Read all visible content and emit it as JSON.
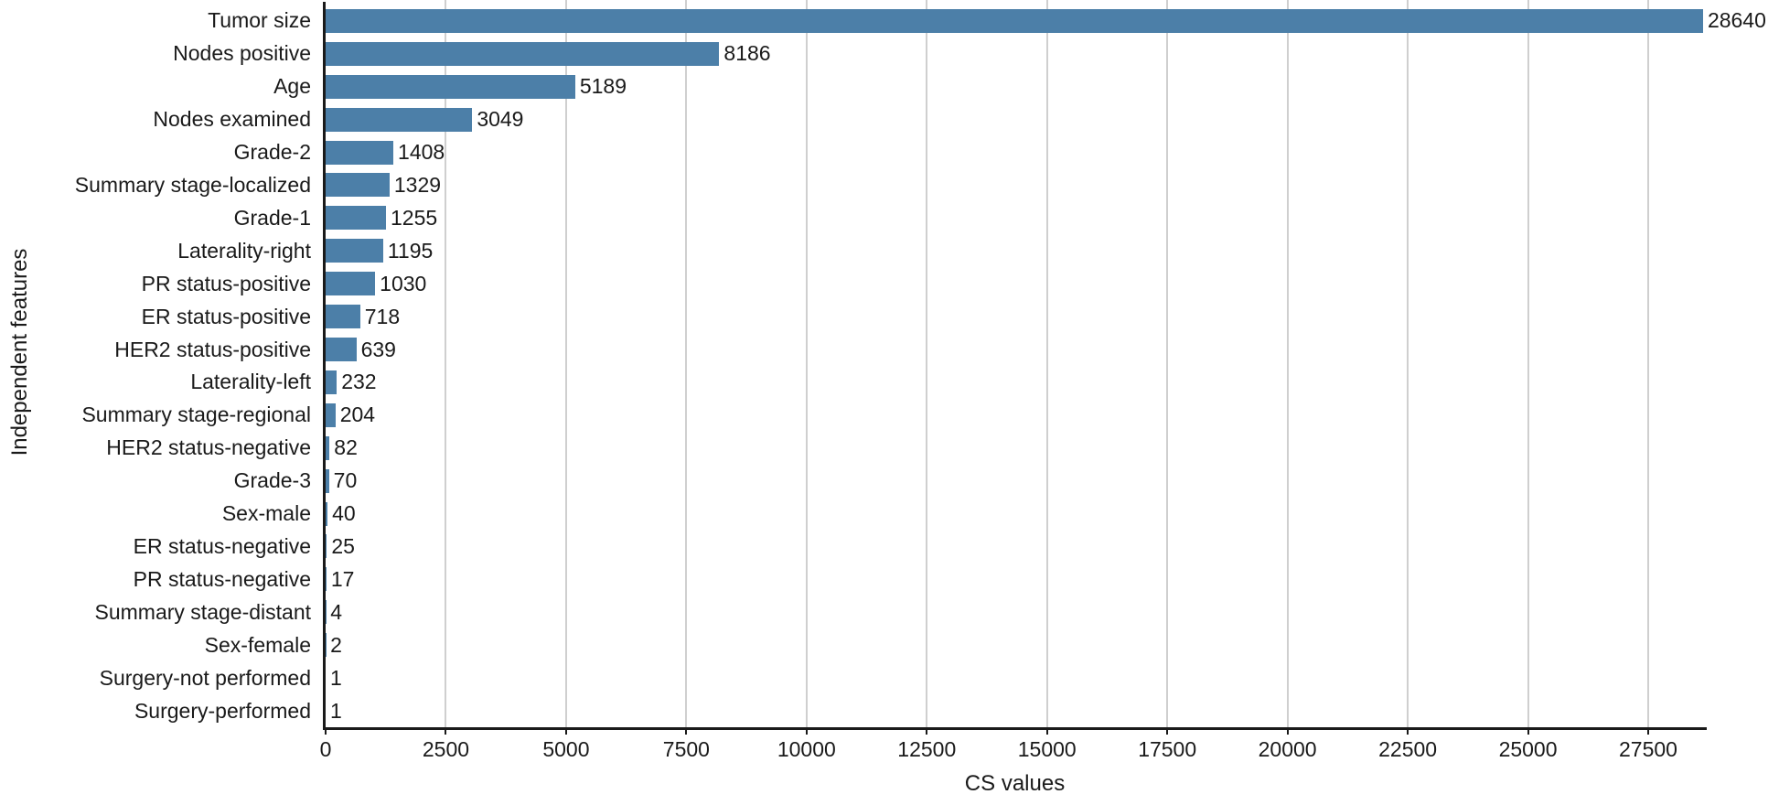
{
  "chart_data": {
    "type": "bar",
    "orientation": "horizontal",
    "xlabel": "CS values",
    "ylabel": "Independent features",
    "categories": [
      "Tumor size",
      "Nodes positive",
      "Age",
      "Nodes examined",
      "Grade-2",
      "Summary stage-localized",
      "Grade-1",
      "Laterality-right",
      "PR status-positive",
      "ER status-positive",
      "HER2 status-positive",
      "Laterality-left",
      "Summary stage-regional",
      "HER2 status-negative",
      "Grade-3",
      "Sex-male",
      "ER status-negative",
      "PR status-negative",
      "Summary stage-distant",
      "Sex-female",
      "Surgery-not performed",
      "Surgery-performed"
    ],
    "values": [
      28640,
      8186,
      5189,
      3049,
      1408,
      1329,
      1255,
      1195,
      1030,
      718,
      639,
      232,
      204,
      82,
      70,
      40,
      25,
      17,
      4,
      2,
      1,
      1
    ],
    "bar_value_labels": [
      "28640",
      "8186",
      "5189",
      "3049",
      "1408",
      "1329",
      "1255",
      "1195",
      "1030",
      "718",
      "639",
      "232",
      "204",
      "82",
      "70",
      "40",
      "25",
      "17",
      "4",
      "2",
      "1",
      "1"
    ],
    "xlim": [
      0,
      28660
    ],
    "xticks": [
      0,
      2500,
      5000,
      7500,
      10000,
      12500,
      15000,
      17500,
      20000,
      22500,
      25000,
      27500
    ],
    "xtick_labels": [
      "0",
      "2500",
      "5000",
      "7500",
      "10000",
      "12500",
      "15000",
      "17500",
      "20000",
      "22500",
      "25000",
      "27500"
    ],
    "grid": "vertical",
    "legend": "none",
    "colors": {
      "bar": "#4c7fa8",
      "gridline": "#cfcfcf",
      "axis": "#1a1a1a",
      "text": "#1a1a1a"
    }
  }
}
